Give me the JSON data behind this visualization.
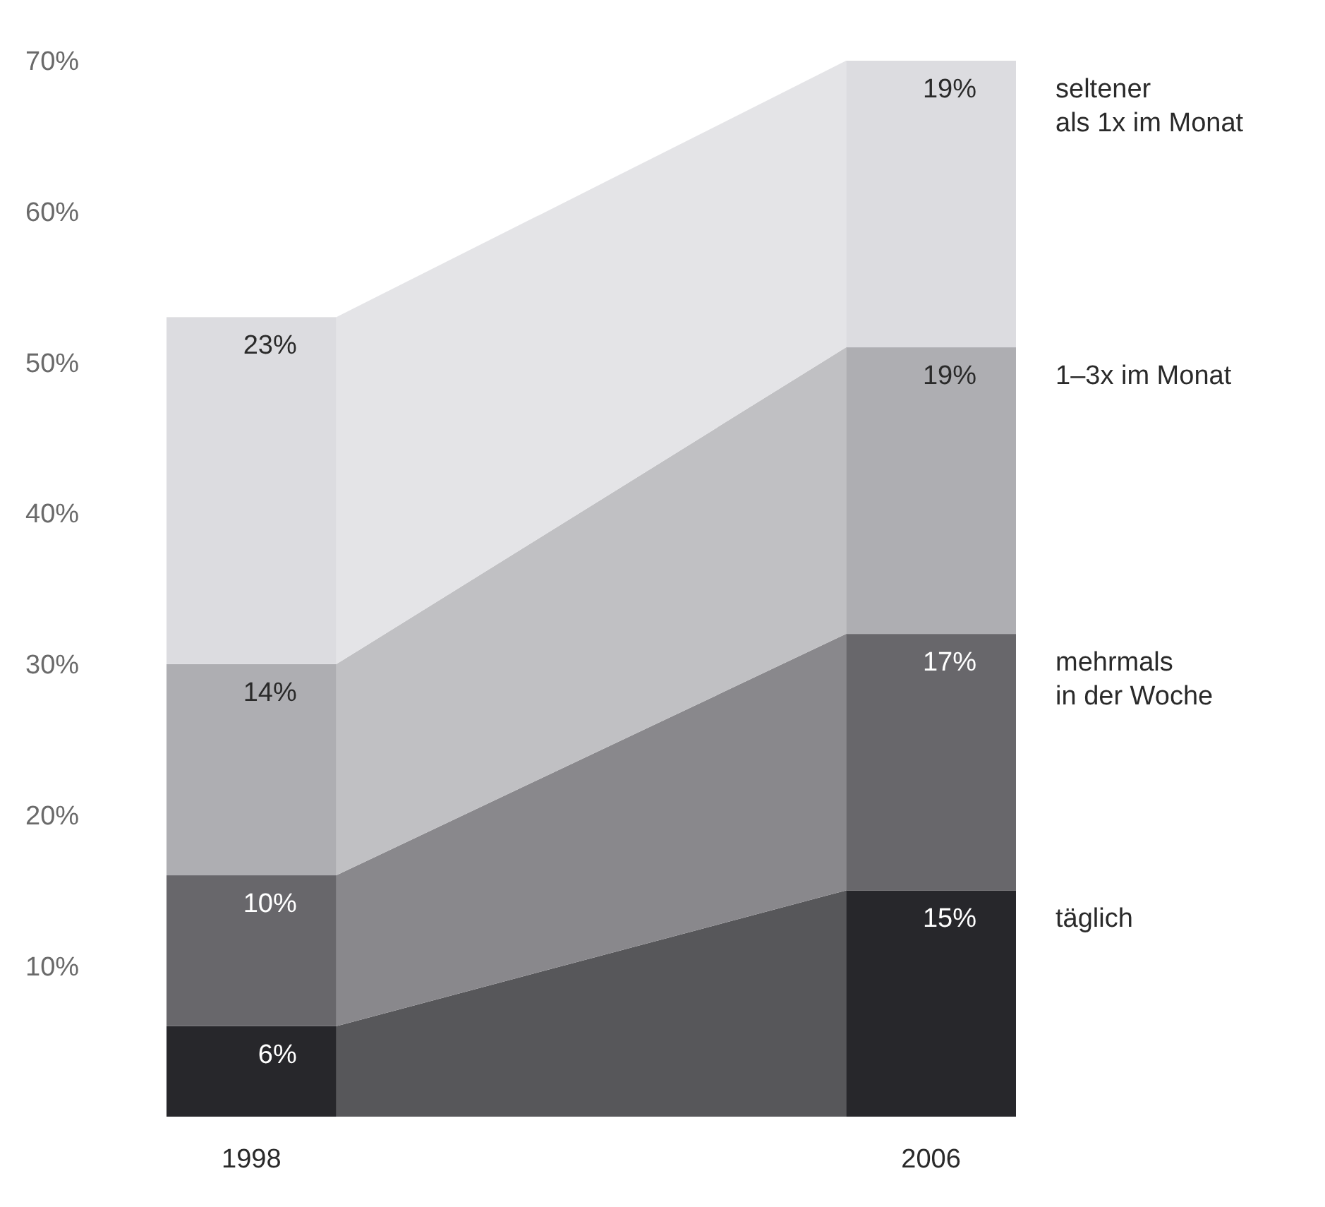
{
  "chart_data": {
    "type": "bar",
    "stacked": true,
    "categories": [
      "1998",
      "2006"
    ],
    "ylim": [
      0,
      70
    ],
    "yticks": [
      {
        "value": 10,
        "label": "10%"
      },
      {
        "value": 20,
        "label": "20%"
      },
      {
        "value": 30,
        "label": "30%"
      },
      {
        "value": 40,
        "label": "40%"
      },
      {
        "value": 50,
        "label": "50%"
      },
      {
        "value": 60,
        "label": "60%"
      },
      {
        "value": 70,
        "label": "70%"
      }
    ],
    "grid": false,
    "legend": "right",
    "series": [
      {
        "name": "täglich",
        "color": "#27272b",
        "values": [
          6,
          15
        ],
        "value_labels": [
          "6%",
          "15%"
        ]
      },
      {
        "name": "mehrmals\nin der Woche",
        "color": "#68676b",
        "values": [
          10,
          17
        ],
        "value_labels": [
          "10%",
          "17%"
        ]
      },
      {
        "name": "1–3x im Monat",
        "color": "#aeaeb2",
        "values": [
          14,
          19
        ],
        "value_labels": [
          "14%",
          "19%"
        ]
      },
      {
        "name": "seltener\nals 1x im Monat",
        "color": "#dcdce0",
        "values": [
          23,
          19
        ],
        "value_labels": [
          "23%",
          "19%"
        ]
      }
    ]
  }
}
